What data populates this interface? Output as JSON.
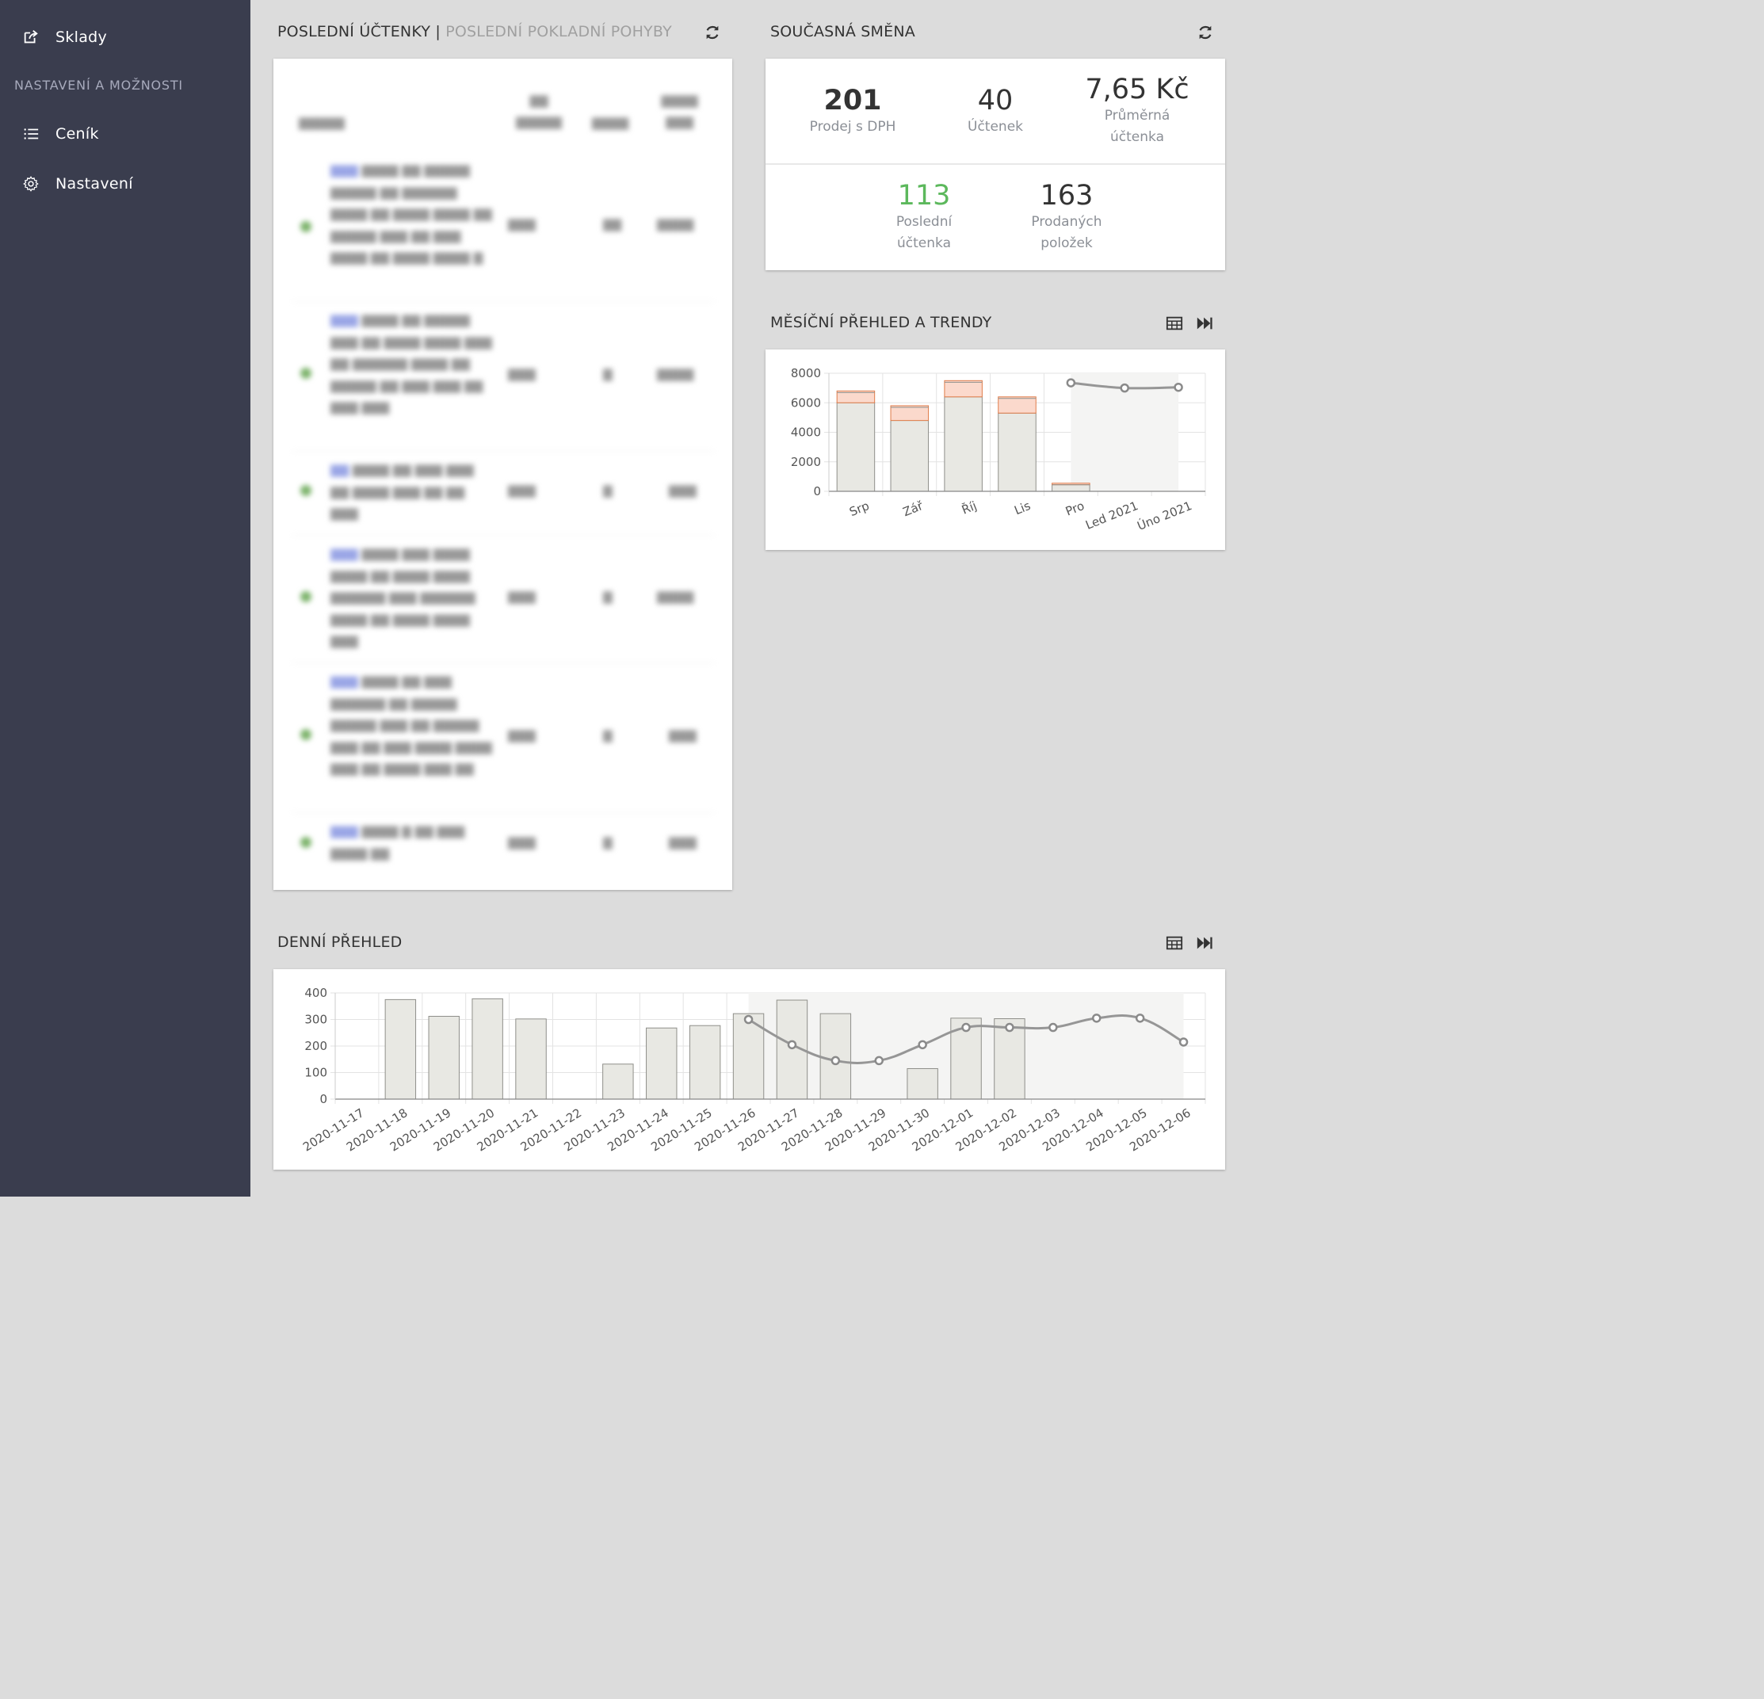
{
  "sidebar": {
    "items_top": [
      {
        "label": "Sklady",
        "icon": "share-square-icon"
      }
    ],
    "section_title": "NASTAVENÍ A MOŽNOSTI",
    "items": [
      {
        "label": "Ceník",
        "icon": "list-icon"
      },
      {
        "label": "Nastavení",
        "icon": "gear-icon"
      }
    ]
  },
  "receipts": {
    "title_active": "POSLEDNÍ ÚČTENKY",
    "title_separator": " | ",
    "title_inactive": "POSLEDNÍ POKLADNÍ POHYBY",
    "refresh_icon": "refresh-icon"
  },
  "shift": {
    "title": "SOUČASNÁ SMĚNA",
    "refresh_icon": "refresh-icon",
    "sales": {
      "value": "201",
      "label": "Prodej s DPH"
    },
    "receipts": {
      "value": "40",
      "label": "Účtenek"
    },
    "avg": {
      "value": "7,65 Kč",
      "label_1": "Průměrná",
      "label_2": "účtenka"
    },
    "last": {
      "value": "113",
      "label_1": "Poslední",
      "label_2": "účtenka",
      "color": "#5cb85c"
    },
    "items_sold": {
      "value": "163",
      "label_1": "Prodaných",
      "label_2": "položek"
    }
  },
  "monthly": {
    "title": "MĚSÍČNÍ PŘEHLED A TRENDY",
    "table_icon": "table-icon",
    "forward_icon": "fast-forward-icon"
  },
  "daily": {
    "title": "DENNÍ PŘEHLED",
    "table_icon": "table-icon",
    "forward_icon": "fast-forward-icon"
  },
  "chart_data": [
    {
      "type": "bar",
      "id": "monthly",
      "categories": [
        "Srp",
        "Zář",
        "Říj",
        "Lis",
        "Pro",
        "Led 2021",
        "Úno 2021"
      ],
      "series": [
        {
          "kind": "bar",
          "values": [
            6000,
            4800,
            6400,
            5300,
            450,
            null,
            null
          ],
          "color": "#e8e8e4"
        },
        {
          "kind": "bar-stack",
          "values": [
            800,
            1000,
            1100,
            1100,
            100,
            null,
            null
          ],
          "color": "#fbd8cc"
        },
        {
          "kind": "line",
          "values": [
            null,
            null,
            null,
            null,
            7350,
            7000,
            7050
          ],
          "color": "#999999"
        }
      ],
      "ylim": [
        0,
        8000
      ],
      "yticks": [
        0,
        2000,
        4000,
        6000,
        8000
      ],
      "grid": true
    },
    {
      "type": "bar",
      "id": "daily",
      "categories": [
        "2020-11-17",
        "2020-11-18",
        "2020-11-19",
        "2020-11-20",
        "2020-11-21",
        "2020-11-22",
        "2020-11-23",
        "2020-11-24",
        "2020-11-25",
        "2020-11-26",
        "2020-11-27",
        "2020-11-28",
        "2020-11-29",
        "2020-11-30",
        "2020-12-01",
        "2020-12-02",
        "2020-12-03",
        "2020-12-04",
        "2020-12-05",
        "2020-12-06"
      ],
      "series": [
        {
          "kind": "bar",
          "values": [
            0,
            375,
            312,
            378,
            302,
            0,
            132,
            268,
            277,
            322,
            373,
            322,
            0,
            115,
            305,
            303,
            null,
            null,
            null,
            null
          ],
          "color": "#e8e8e4"
        },
        {
          "kind": "line",
          "values": [
            null,
            null,
            null,
            null,
            null,
            null,
            null,
            null,
            null,
            300,
            205,
            145,
            145,
            205,
            270,
            270,
            270,
            305,
            305,
            215
          ],
          "color": "#999999"
        }
      ],
      "ylim": [
        0,
        400
      ],
      "yticks": [
        0,
        100,
        200,
        300,
        400
      ],
      "grid": true
    }
  ]
}
